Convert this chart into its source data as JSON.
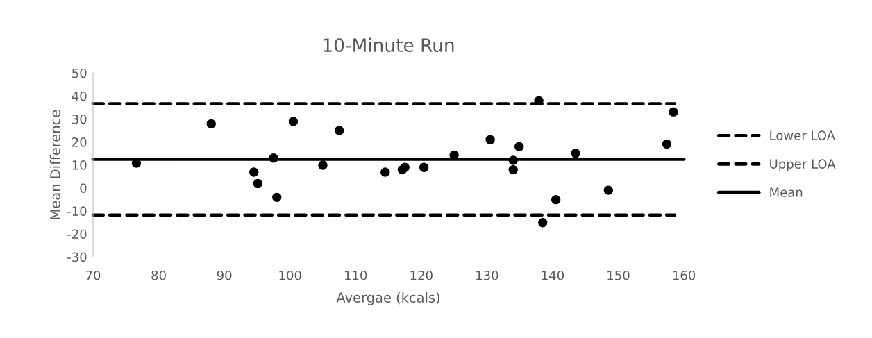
{
  "chart_data": {
    "type": "scatter",
    "title": "10-Minute Run",
    "xlabel": "Avergae (kcals)",
    "ylabel": "Mean Difference",
    "xlim": [
      70,
      160
    ],
    "xticks": [
      70,
      80,
      90,
      100,
      110,
      120,
      130,
      140,
      150,
      160
    ],
    "ylim": [
      -30,
      50
    ],
    "yticks": [
      -30,
      -20,
      -10,
      0,
      10,
      20,
      30,
      40,
      50
    ],
    "grid": false,
    "legend": "right",
    "series": [
      {
        "marker": "circle",
        "color": "#000000",
        "x": [
          76.6,
          88.0,
          100.5,
          107.5,
          97.5,
          105.0,
          94.5,
          95.1,
          98.0,
          114.5,
          117.1,
          117.5,
          120.4,
          125.0,
          130.5,
          134.0,
          134.0,
          134.9,
          137.9,
          138.5,
          140.5,
          143.5,
          148.5,
          157.4,
          158.4
        ],
        "values": [
          10.8,
          27.9,
          28.9,
          25.0,
          13.0,
          9.9,
          6.9,
          1.9,
          -4.1,
          6.9,
          7.9,
          8.9,
          8.9,
          14.3,
          21.0,
          12.0,
          7.9,
          18.0,
          37.9,
          -15.1,
          -5.1,
          15.1,
          -1.0,
          19.1,
          33.1
        ]
      },
      {
        "type": "line",
        "name": "Lower LOA",
        "color": "#000000",
        "line_style": "dashed",
        "x": [
          70,
          158.6
        ],
        "values": [
          -11.8,
          -11.8
        ]
      },
      {
        "type": "line",
        "name": "Upper LOA",
        "color": "#000000",
        "line_style": "dashed",
        "x": [
          70,
          158.6
        ],
        "values": [
          36.6,
          36.6
        ]
      },
      {
        "type": "line",
        "name": "Mean",
        "color": "#000000",
        "line_style": "solid",
        "x": [
          70,
          160
        ],
        "values": [
          12.5,
          12.5
        ]
      }
    ]
  }
}
